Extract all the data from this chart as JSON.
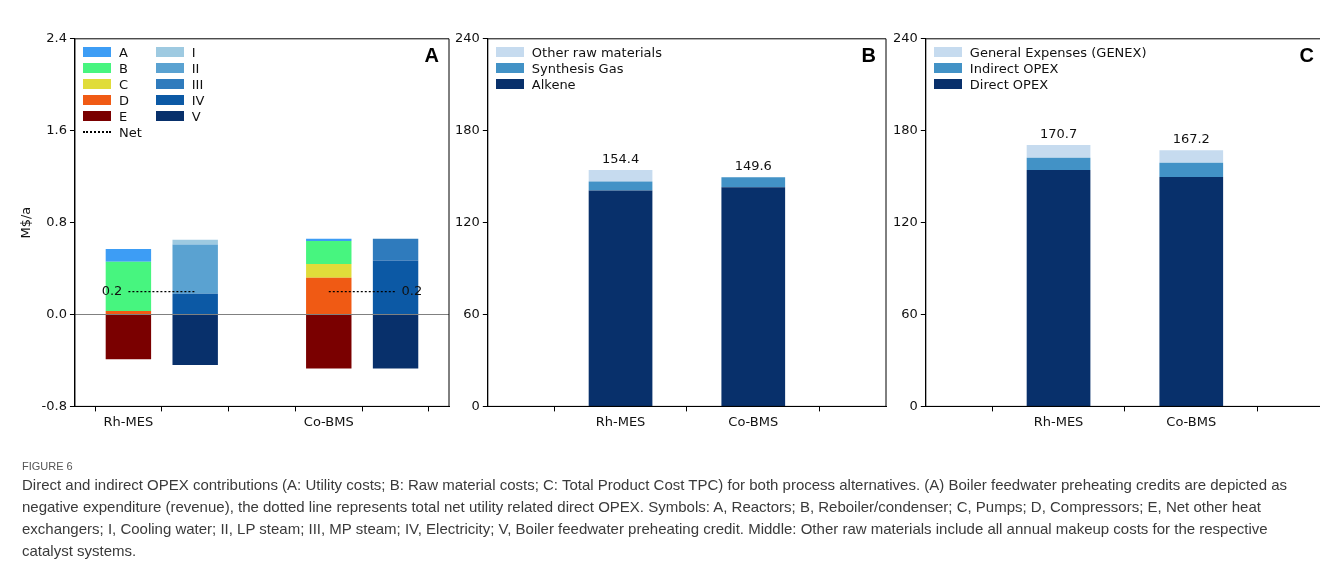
{
  "chart_data": [
    {
      "type": "bar",
      "stacked": true,
      "ylabel": "M$/a",
      "categories": [
        "Rh-MES",
        null,
        null,
        "Co-BMS",
        null
      ],
      "ylim": [
        -0.8,
        2.4
      ],
      "yticks": [
        -0.8,
        {
          "value": 0,
          "label": "0.0"
        },
        0.8,
        1.6,
        2.4
      ],
      "legend": "top left",
      "series": [
        {
          "name": "E",
          "color": "#7a0000",
          "values": [
            -0.39,
            null,
            null,
            -0.47,
            null
          ]
        },
        {
          "name": "D",
          "color": "#f05a14",
          "values": [
            0.03,
            null,
            null,
            0.32,
            null
          ]
        },
        {
          "name": "C",
          "color": "#e0dc3a",
          "values": [
            0,
            null,
            null,
            0.12,
            null
          ]
        },
        {
          "name": "B",
          "color": "#47f57f",
          "values": [
            0.43,
            null,
            null,
            0.2,
            null
          ]
        },
        {
          "name": "A",
          "color": "#3d9df5",
          "values": [
            0.11,
            null,
            null,
            0.02,
            null
          ]
        },
        {
          "name": "V",
          "color": "#08306b",
          "values": [
            null,
            -0.44,
            null,
            null,
            -0.47
          ]
        },
        {
          "name": "IV",
          "color": "#0c59a5",
          "values": [
            null,
            0.18,
            null,
            null,
            0.47
          ]
        },
        {
          "name": "III",
          "color": "#2f7bbd",
          "values": [
            null,
            0,
            null,
            null,
            0.19
          ]
        },
        {
          "name": "II",
          "color": "#5aa2d1",
          "values": [
            null,
            0.43,
            null,
            null,
            0
          ]
        },
        {
          "name": "I",
          "color": "#9ecae1",
          "values": [
            null,
            0.04,
            null,
            null,
            0
          ]
        },
        {
          "name": "Net",
          "type": "line",
          "color": "#000000",
          "line_style": "dotted",
          "values": [
            0.2,
            0.2,
            null,
            0.2,
            0.2
          ],
          "value_labels": [
            "0.2",
            null,
            null,
            null,
            "0.2"
          ]
        }
      ],
      "ref_lines": [
        {
          "axis": "y",
          "value": 0,
          "color": "#808080"
        }
      ],
      "annotations": [
        "A",
        "FIGURE 6",
        "Direct and indirect OPEX contributions (A: Utility costs; B: Raw material costs; C: Total Product Cost TPC) for both process alternatives. (A) Boiler feedwater preheating credits are depicted as negative expenditure (revenue), the dotted line represents total net utility related direct OPEX. Symbols: A, Reactors; B, Reboiler/condenser; C, Pumps; D, Compressors; E, Net other heat exchangers; I, Cooling water; II, LP steam; III, MP steam; IV, Electricity; V, Boiler feedwater preheating credit. Middle: Other raw materials include all annual makeup costs for the respective catalyst systems."
      ]
    },
    {
      "type": "bar",
      "stacked": true,
      "categories": [
        "Rh-MES",
        "Co-BMS"
      ],
      "ylim": [
        0,
        240
      ],
      "yticks": [
        0,
        60,
        120,
        180,
        240
      ],
      "legend": "top left",
      "series": [
        {
          "name": "Alkene",
          "color": "#08306b",
          "values": [
            141.0,
            143.0
          ]
        },
        {
          "name": "Synthesis Gas",
          "color": "#4292c6",
          "values": [
            5.8,
            6.6
          ]
        },
        {
          "name": "Other raw materials",
          "color": "#c6dbef",
          "values": [
            7.6,
            0
          ]
        }
      ],
      "totals": [
        "154.4",
        "149.6"
      ],
      "annotations": [
        "B"
      ]
    },
    {
      "type": "bar",
      "stacked": true,
      "categories": [
        "Rh-MES",
        "Co-BMS"
      ],
      "ylim": [
        0,
        240
      ],
      "yticks": [
        0,
        60,
        120,
        180,
        240
      ],
      "legend": "top left",
      "series": [
        {
          "name": "Direct OPEX",
          "color": "#08306b",
          "values": [
            154.4,
            149.8
          ]
        },
        {
          "name": "Indirect OPEX",
          "color": "#4292c6",
          "values": [
            8.0,
            9.2
          ]
        },
        {
          "name": "General Expenses (GENEX)",
          "color": "#c6dbef",
          "values": [
            8.3,
            8.2
          ]
        }
      ],
      "totals": [
        "170.7",
        "167.2"
      ],
      "annotations": [
        "C"
      ]
    }
  ]
}
